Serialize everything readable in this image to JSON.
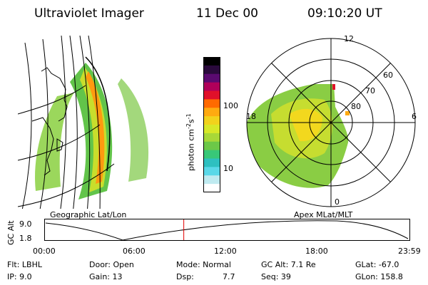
{
  "header": {
    "instrument": "Ultraviolet Imager",
    "date": "11 Dec 00",
    "time": "09:10:20 UT"
  },
  "colorbar": {
    "label": "photon cm",
    "label_exp1": "-2",
    "label_s": "s",
    "label_exp2": "-1",
    "ticks": [
      "100",
      "10"
    ],
    "colors": [
      "#000000",
      "#2a0a3c",
      "#5a0a70",
      "#b0005a",
      "#e0102a",
      "#ff6a00",
      "#ffaa10",
      "#f2d21c",
      "#d8e828",
      "#a8d838",
      "#6cc848",
      "#38c878",
      "#2ec0c0",
      "#5ad8e8",
      "#bfeaf0",
      "#ffffff"
    ]
  },
  "left_panel": {
    "caption": "Geographic Lat/Lon"
  },
  "right_panel": {
    "caption": "Apex MLat/MLT",
    "mlt_labels": [
      "12",
      "18",
      "6",
      "0"
    ],
    "lat_labels": [
      "60",
      "70",
      "80"
    ]
  },
  "timeline": {
    "ylabel": "GC Alt",
    "y_ticks": [
      "9.0",
      "1.8"
    ],
    "x_ticks": [
      "00:00",
      "06:00",
      "12:00",
      "18:00",
      "23:59"
    ],
    "current_hour": 9.17,
    "marker_color": "#e00000"
  },
  "info": {
    "row1": {
      "filter": "Flt: LBHL",
      "door": "Door: Open",
      "mode": "Mode: Normal",
      "gc_alt": "GC Alt: 7.1 Re",
      "glat": "GLat: -67.0"
    },
    "row2": {
      "ip": "IP:  9.0",
      "gain": "Gain: 13",
      "dsp_label": "Dsp:",
      "dsp_value": "7.7",
      "seq": "Seq: 39",
      "glon": "GLon: 158.8"
    }
  }
}
